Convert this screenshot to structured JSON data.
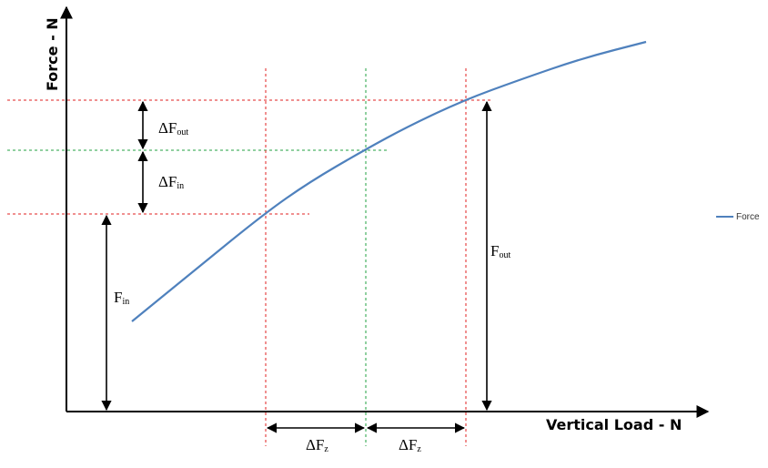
{
  "chart_data": {
    "type": "line",
    "xlabel": "Vertical Load - N",
    "ylabel": "Force - N",
    "legend": {
      "position": "right",
      "entries": [
        "Force"
      ]
    },
    "grid": false,
    "series": [
      {
        "name": "Force",
        "color": "#4f81bd",
        "points": [
          [
            145,
            353
          ],
          [
            210,
            300
          ],
          [
            290,
            235
          ],
          [
            340,
            200
          ],
          [
            400,
            165
          ],
          [
            450,
            138
          ],
          [
            510,
            110
          ],
          [
            570,
            88
          ],
          [
            640,
            64
          ],
          [
            710,
            46
          ]
        ]
      }
    ],
    "annotations": {
      "delta_f_out": {
        "main": "ΔF",
        "sub": "out"
      },
      "delta_f_in": {
        "main": "ΔF",
        "sub": "in"
      },
      "f_in": {
        "main": "F",
        "sub": "in"
      },
      "f_out": {
        "main": "F",
        "sub": "out"
      },
      "delta_fz_left": {
        "main": "ΔF",
        "sub": "z"
      },
      "delta_fz_right": {
        "main": "ΔF",
        "sub": "z"
      }
    },
    "reference_lines": {
      "red": "#e02020",
      "green": "#20a040"
    }
  }
}
